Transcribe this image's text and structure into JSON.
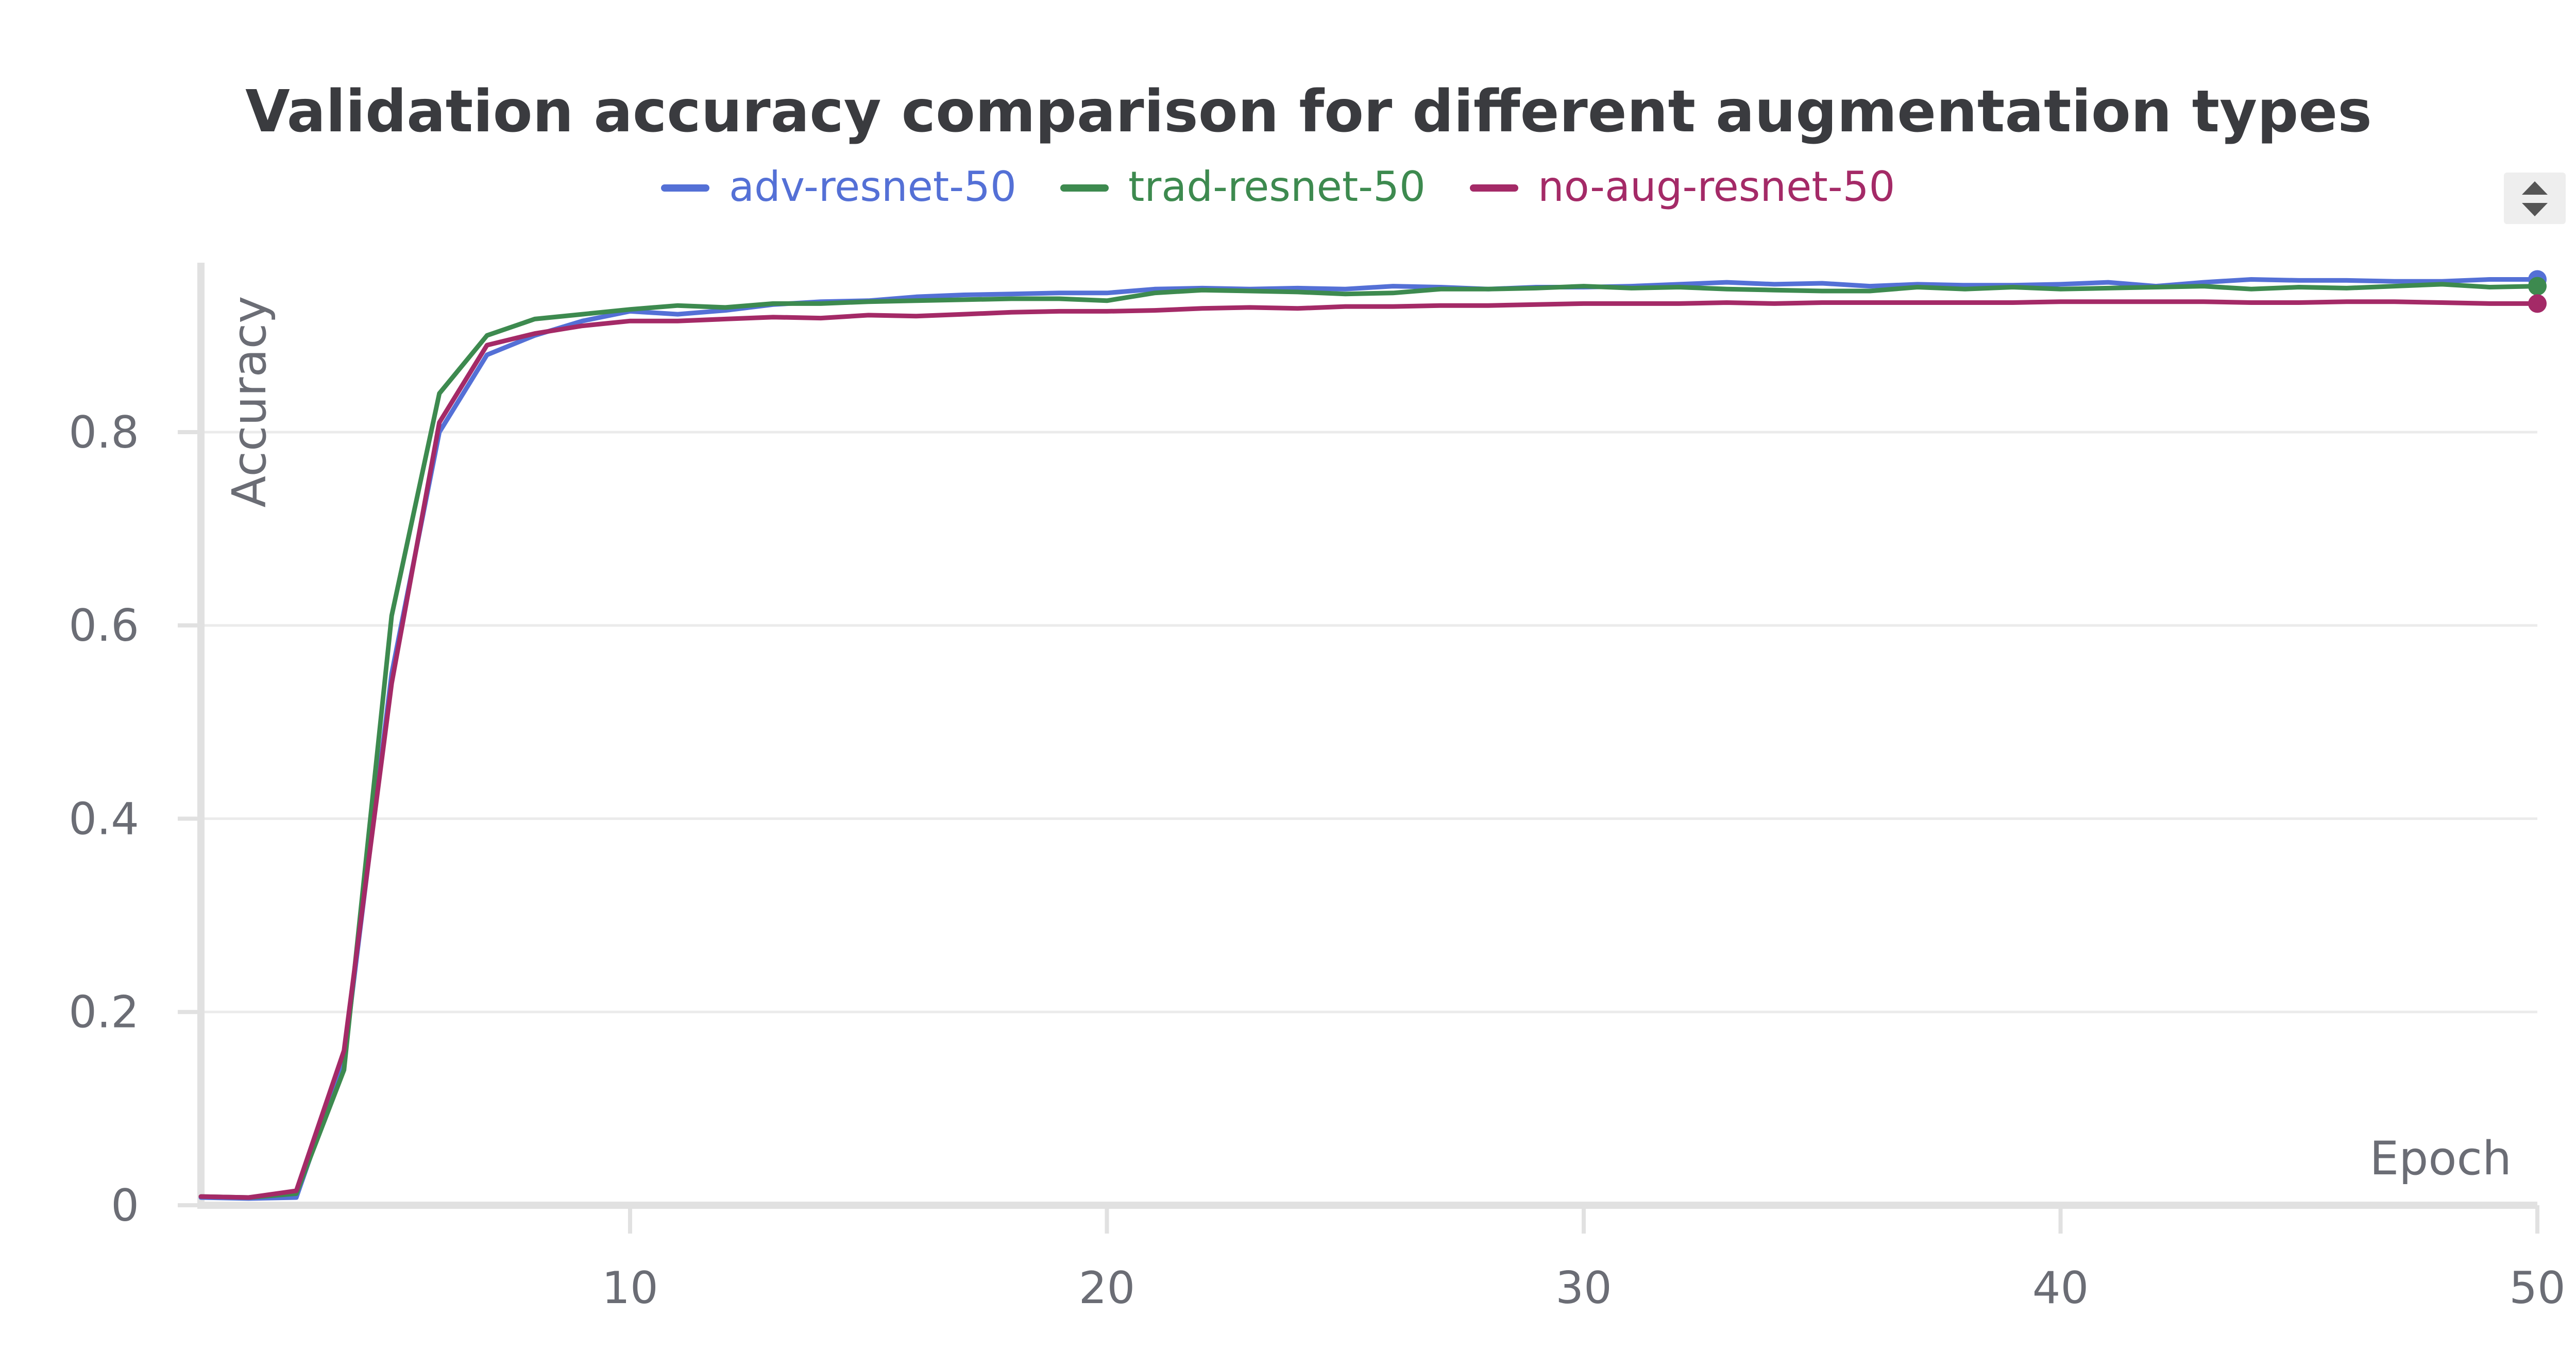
{
  "chart_data": {
    "type": "line",
    "title": "Validation accuracy comparison for different augmentation types",
    "xlabel": "Epoch",
    "ylabel": "Accuracy",
    "xlim": [
      1,
      50
    ],
    "ylim": [
      0,
      0.97
    ],
    "x_ticks": [
      10,
      20,
      30,
      40,
      50
    ],
    "y_ticks": [
      0,
      0.2,
      0.4,
      0.6,
      0.8
    ],
    "y_tick_labels": [
      "0",
      "0.2",
      "0.4",
      "0.6",
      "0.8"
    ],
    "x_tick_labels": [
      "10",
      "20",
      "30",
      "40",
      "50"
    ],
    "grid": true,
    "legend_position": "top-center",
    "x": [
      1,
      2,
      3,
      4,
      5,
      6,
      7,
      8,
      9,
      10,
      11,
      12,
      13,
      14,
      15,
      16,
      17,
      18,
      19,
      20,
      21,
      22,
      23,
      24,
      25,
      26,
      27,
      28,
      29,
      30,
      31,
      32,
      33,
      34,
      35,
      36,
      37,
      38,
      39,
      40,
      41,
      42,
      43,
      44,
      45,
      46,
      47,
      48,
      49,
      50
    ],
    "series": [
      {
        "name": "adv-resnet-50",
        "color": "#5470d6",
        "values": [
          0.008,
          0.007,
          0.008,
          0.15,
          0.55,
          0.8,
          0.88,
          0.9,
          0.915,
          0.925,
          0.922,
          0.926,
          0.932,
          0.935,
          0.936,
          0.94,
          0.942,
          0.943,
          0.944,
          0.944,
          0.948,
          0.949,
          0.948,
          0.949,
          0.948,
          0.951,
          0.95,
          0.948,
          0.95,
          0.95,
          0.951,
          0.953,
          0.955,
          0.953,
          0.954,
          0.951,
          0.953,
          0.952,
          0.952,
          0.953,
          0.955,
          0.951,
          0.955,
          0.958,
          0.957,
          0.957,
          0.956,
          0.956,
          0.958,
          0.958
        ]
      },
      {
        "name": "trad-resnet-50",
        "color": "#3d8a4f",
        "values": [
          0.009,
          0.008,
          0.012,
          0.14,
          0.61,
          0.84,
          0.9,
          0.917,
          0.922,
          0.927,
          0.931,
          0.929,
          0.933,
          0.933,
          0.935,
          0.936,
          0.937,
          0.938,
          0.938,
          0.936,
          0.944,
          0.947,
          0.946,
          0.945,
          0.943,
          0.944,
          0.948,
          0.948,
          0.949,
          0.951,
          0.949,
          0.95,
          0.948,
          0.947,
          0.946,
          0.946,
          0.95,
          0.948,
          0.95,
          0.948,
          0.949,
          0.95,
          0.951,
          0.948,
          0.95,
          0.949,
          0.951,
          0.953,
          0.95,
          0.951
        ]
      },
      {
        "name": "no-aug-resnet-50",
        "color": "#a42a67",
        "values": [
          0.009,
          0.008,
          0.015,
          0.16,
          0.54,
          0.81,
          0.89,
          0.902,
          0.91,
          0.915,
          0.915,
          0.917,
          0.919,
          0.918,
          0.921,
          0.92,
          0.922,
          0.924,
          0.925,
          0.925,
          0.926,
          0.928,
          0.929,
          0.928,
          0.93,
          0.93,
          0.931,
          0.931,
          0.932,
          0.933,
          0.933,
          0.933,
          0.934,
          0.933,
          0.934,
          0.934,
          0.934,
          0.934,
          0.934,
          0.935,
          0.935,
          0.935,
          0.935,
          0.934,
          0.934,
          0.935,
          0.935,
          0.934,
          0.933,
          0.933
        ]
      }
    ]
  }
}
